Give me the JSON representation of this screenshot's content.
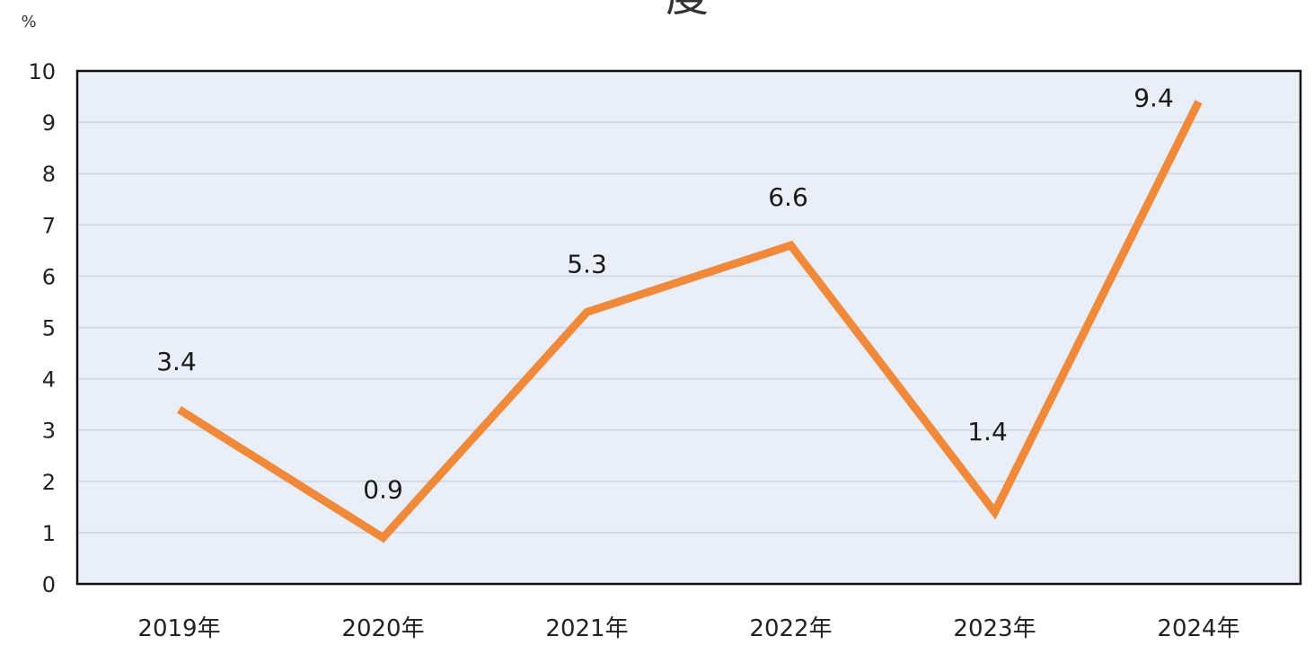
{
  "chart_data": {
    "type": "line",
    "title_fragment": "度",
    "ylabel": "%",
    "xlabel": "",
    "categories": [
      "2019年",
      "2020年",
      "2021年",
      "2022年",
      "2023年",
      "2024年"
    ],
    "series": [
      {
        "values": [
          3.4,
          0.9,
          5.3,
          6.6,
          1.4,
          9.4
        ],
        "color": "#F0893A"
      }
    ],
    "data_labels": [
      "3.4",
      "0.9",
      "5.3",
      "6.6",
      "1.4",
      "9.4"
    ],
    "ylim": [
      0,
      10
    ],
    "yticks": [
      0,
      1,
      2,
      3,
      4,
      5,
      6,
      7,
      8,
      9,
      10
    ],
    "grid": true,
    "legend": "none",
    "colors": {
      "line": "#F0893A",
      "plot_background": "#E9EEF7",
      "grid": "#D3DAE6",
      "frame": "#111111"
    }
  }
}
